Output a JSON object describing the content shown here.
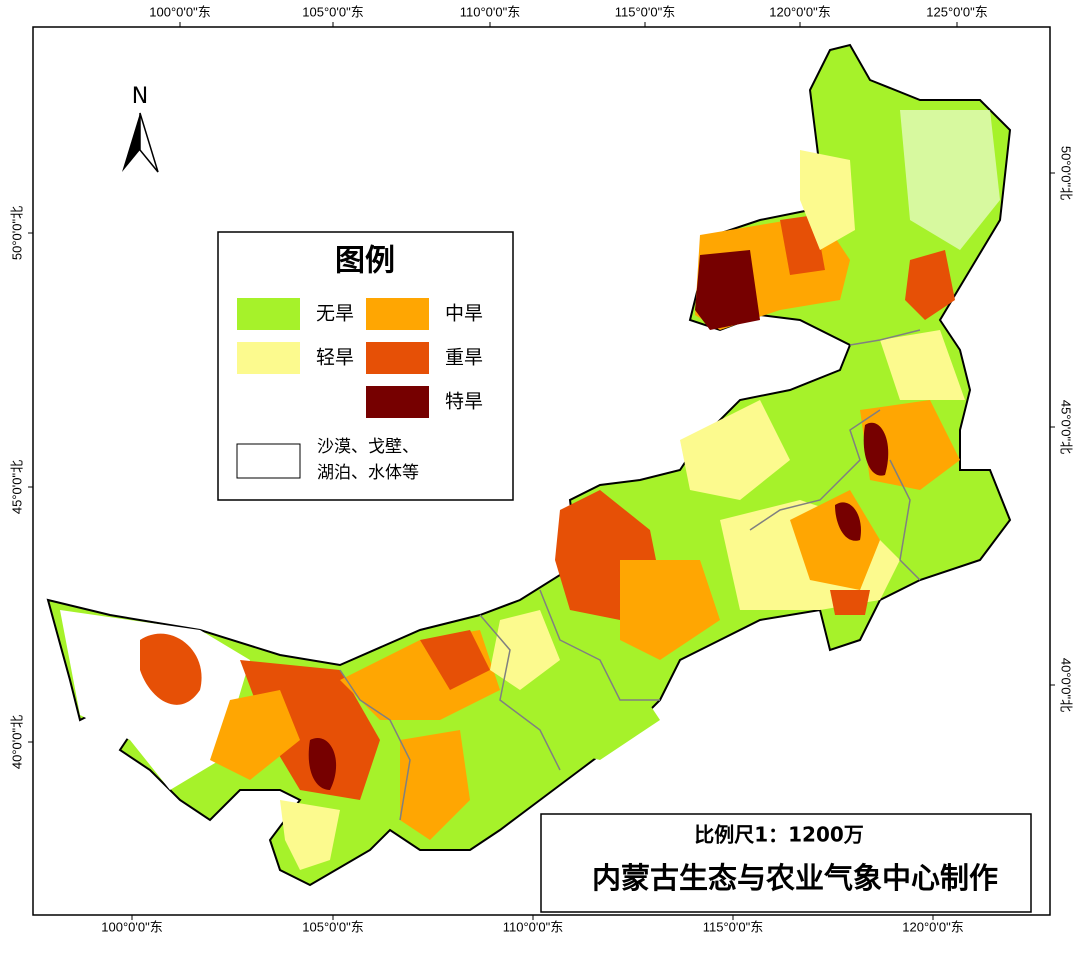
{
  "north_arrow": "N",
  "top_labels": [
    "100°0'0\"东",
    "105°0'0\"东",
    "110°0'0\"东",
    "115°0'0\"东",
    "120°0'0\"东",
    "125°0'0\"东"
  ],
  "bottom_labels": [
    "100°0'0\"东",
    "105°0'0\"东",
    "110°0'0\"东",
    "115°0'0\"东",
    "120°0'0\"东"
  ],
  "left_labels": [
    "50°0'0\"北",
    "45°0'0\"北",
    "40°0'0\"北"
  ],
  "right_labels": [
    "50°0'0\"北",
    "45°0'0\"北",
    "40°0'0\"北"
  ],
  "legend": {
    "title": "图例",
    "items": [
      {
        "label": "无旱",
        "color": "#a6f22a"
      },
      {
        "label": "轻旱",
        "color": "#fcfa8e"
      },
      {
        "label": "中旱",
        "color": "#ffa602"
      },
      {
        "label": "重旱",
        "color": "#e65006"
      },
      {
        "label": "特旱",
        "color": "#760000"
      },
      {
        "lines": [
          "沙漠、戈壁、",
          "湖泊、水体等"
        ],
        "color": "#ffffff"
      }
    ]
  },
  "scale": "比例尺1：1200万",
  "producer": "内蒙古生态与农业气象中心制作"
}
